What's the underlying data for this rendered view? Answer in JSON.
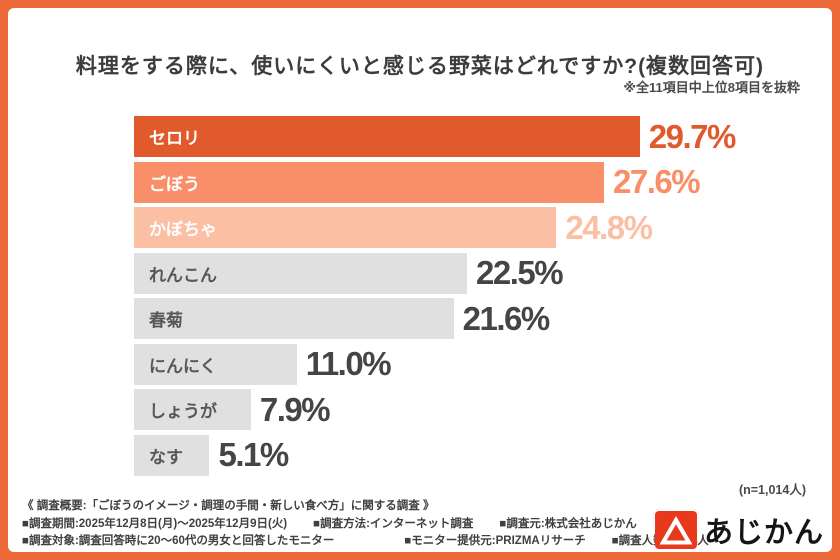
{
  "chart_data": {
    "type": "bar",
    "orientation": "horizontal",
    "title": "料理をする際に、使いにくいと感じる野菜はどれですか?(複数回答可)",
    "note": "※全11項目中上位8項目を抜粋",
    "sample_note": "(n=1,014人)",
    "unit": "%",
    "categories": [
      "セロリ",
      "ごぼう",
      "かぼちゃ",
      "れんこん",
      "春菊",
      "にんにく",
      "しょうが",
      "なす"
    ],
    "values": [
      29.7,
      27.6,
      24.8,
      22.5,
      21.6,
      11.0,
      7.9,
      5.1
    ],
    "highlighted": [
      true,
      true,
      true,
      false,
      false,
      false,
      false,
      false
    ],
    "bar_colors": [
      "#e05a2c",
      "#f98f69",
      "#fbbfa4",
      "#e0e0e0",
      "#e0e0e0",
      "#e0e0e0",
      "#e0e0e0",
      "#e0e0e0"
    ],
    "label_colors": [
      "#ffffff",
      "#ffffff",
      "#ffffff",
      "#575757",
      "#575757",
      "#575757",
      "#575757",
      "#575757"
    ],
    "value_colors": [
      "#e05a2c",
      "#f98f69",
      "#fbbfa4",
      "#454545",
      "#454545",
      "#454545",
      "#454545",
      "#454545"
    ],
    "xlim": [
      0,
      30
    ],
    "grid": false,
    "legend": false
  },
  "footer": {
    "heading": "《 調査概要:「ごぼうのイメージ・調理の手間・新しい食べ方」に関する調査 》",
    "row2": [
      "■調査期間:2025年12月8日(月)〜2025年12月9日(火)",
      "■調査方法:インターネット調査",
      "■調査元:株式会社あじかん"
    ],
    "row3": [
      "■調査対象:調査回答時に20〜60代の男女と回答したモニター",
      "■モニター提供元:PRIZMAリサーチ",
      "■調査人数:1,014人"
    ]
  },
  "logo": {
    "text": "あじかん",
    "icon": "ajikan-triangle-mark",
    "icon_color": "#e8391d"
  },
  "colors": {
    "frame": "#ed6a38",
    "card_background": "#ffffff",
    "title_text": "#3c3c3c",
    "gray_bar": "#e0e0e0"
  }
}
